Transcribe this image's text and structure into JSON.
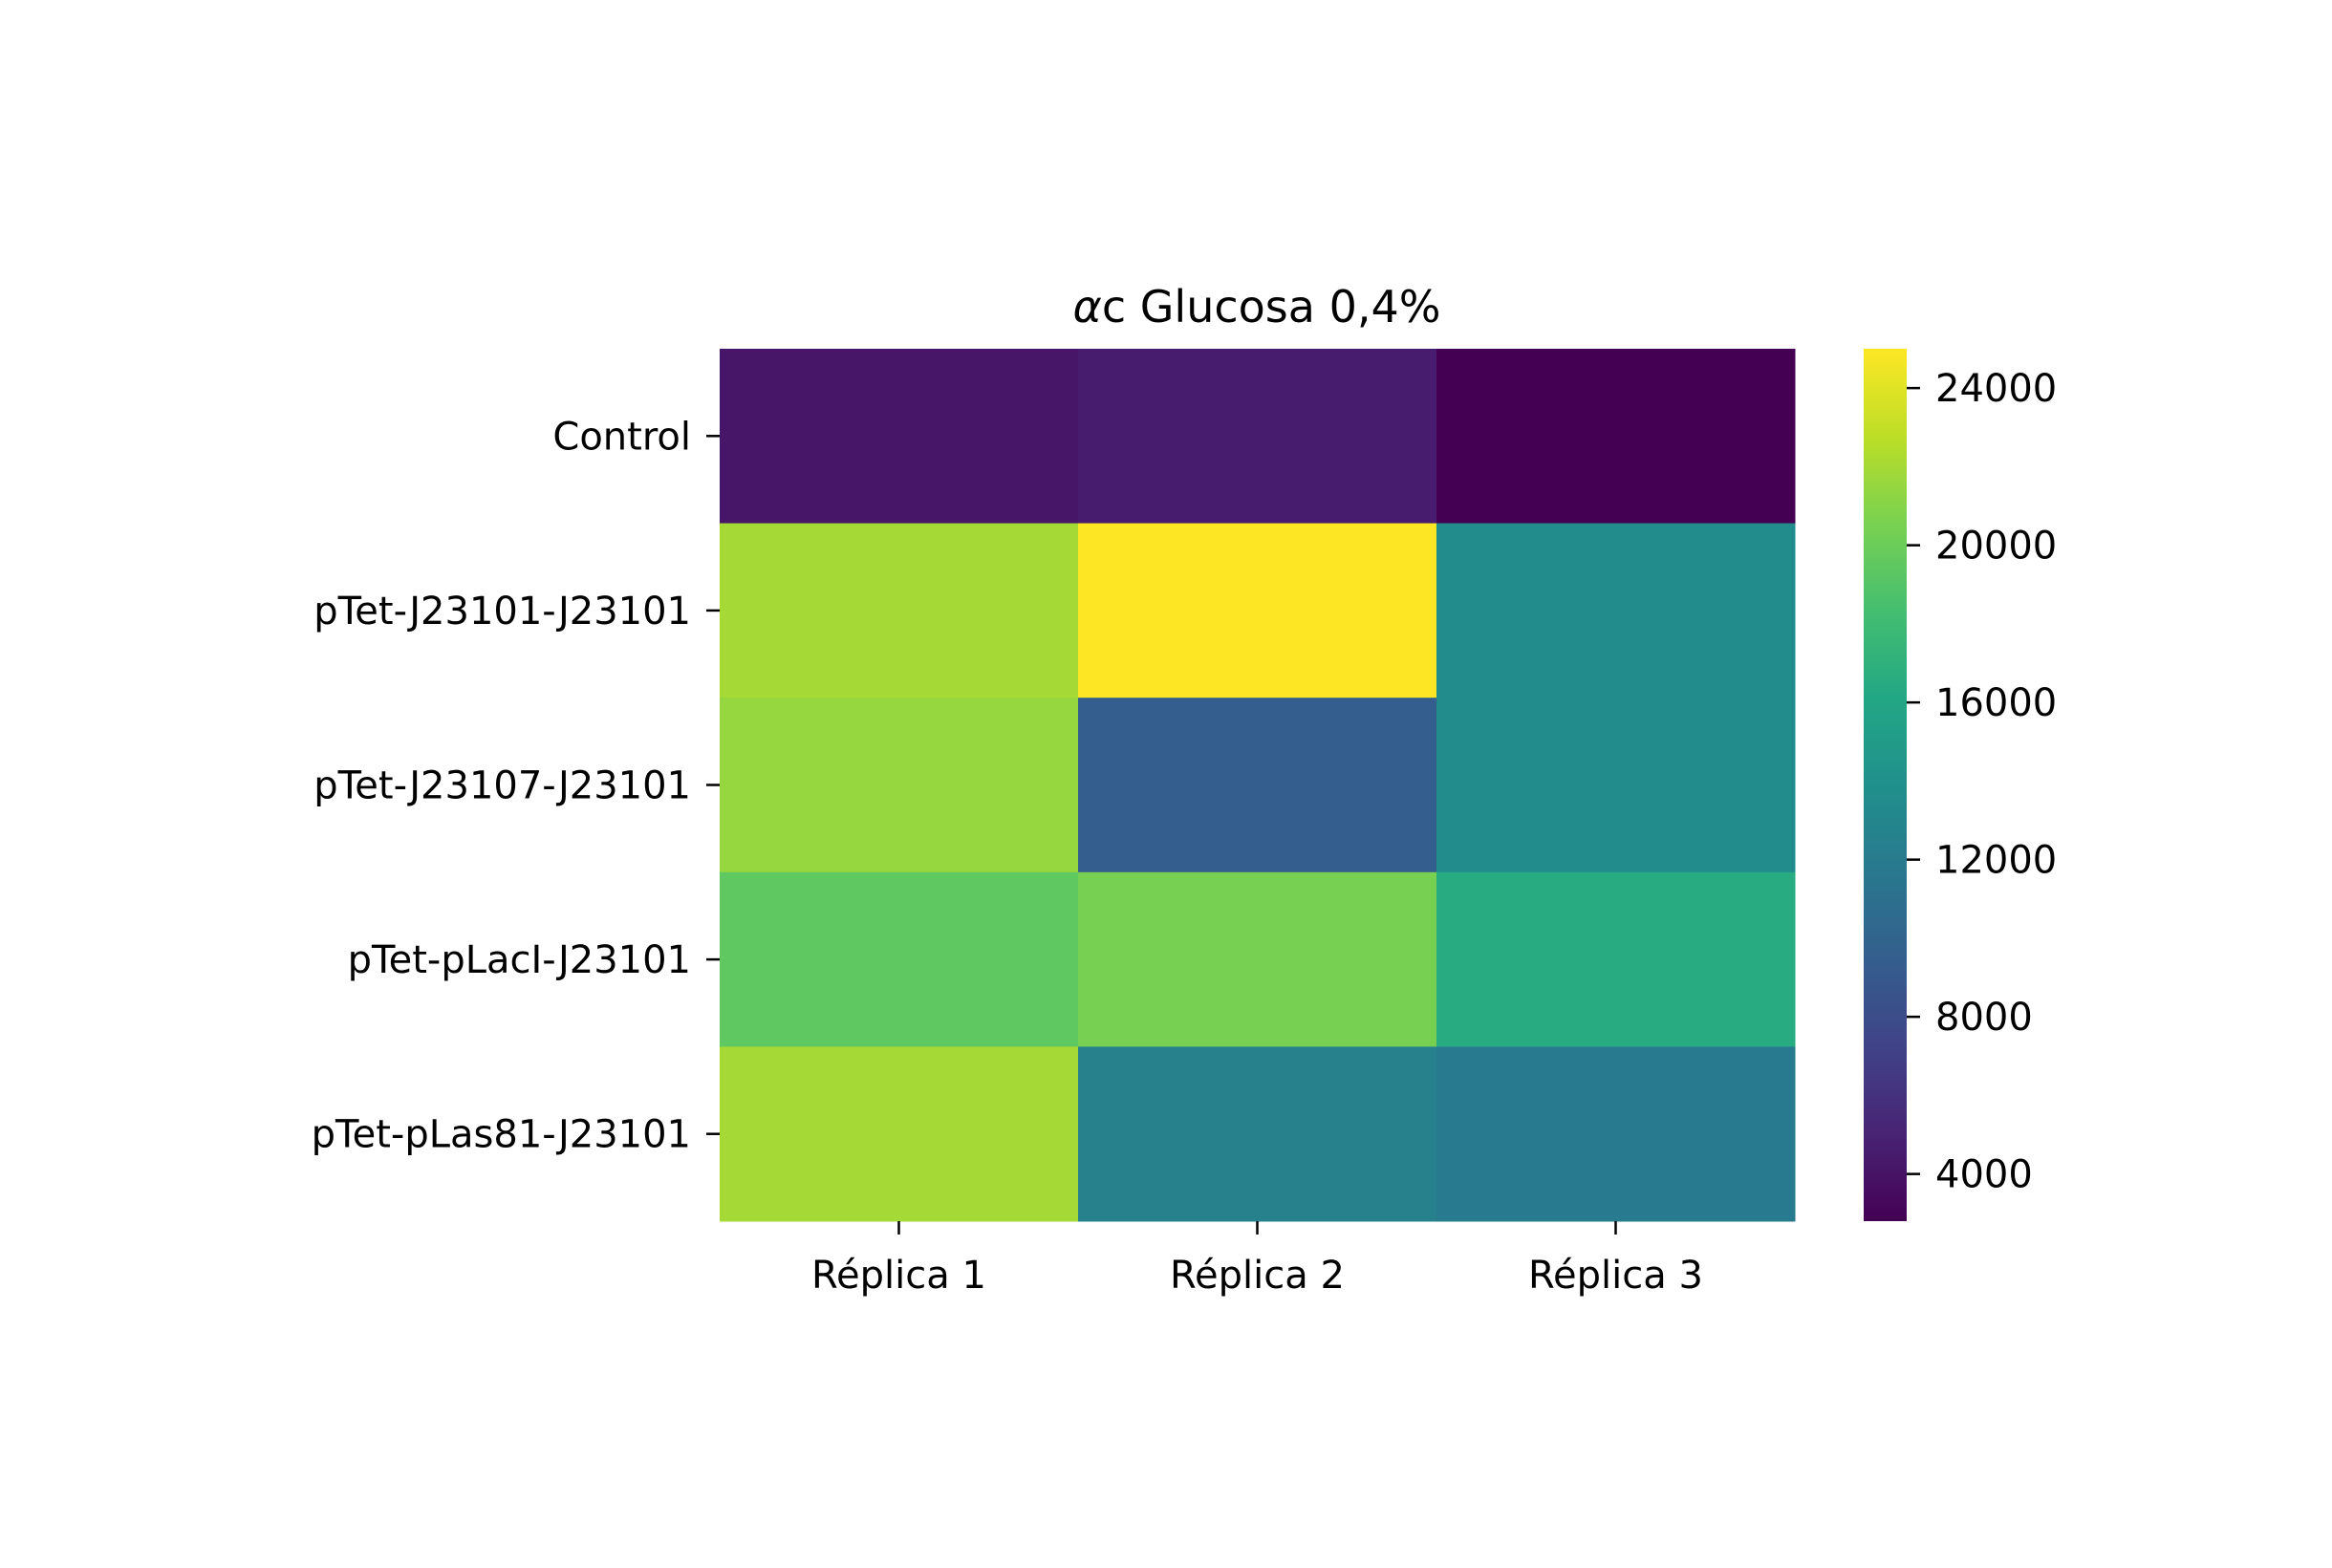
{
  "chart_data": {
    "type": "heatmap",
    "title": "αc Glucosa 0,4%",
    "title_prefix": "α",
    "title_rest": "c Glucosa 0,4%",
    "x_categories": [
      "Réplica 1",
      "Réplica 2",
      "Réplica 3"
    ],
    "y_categories": [
      "Control",
      "pTet-J23101-J23101",
      "pTet-J23107-J23101",
      "pTet-pLacI-J23101",
      "pTet-pLas81-J23101"
    ],
    "values": [
      [
        4200,
        4500,
        2800
      ],
      [
        22000,
        25000,
        13500
      ],
      [
        21500,
        9500,
        13500
      ],
      [
        19500,
        20500,
        16500
      ],
      [
        22000,
        12500,
        12000
      ]
    ],
    "colorscale": "viridis",
    "color_range": [
      2800,
      25000
    ],
    "colorbar_ticks": [
      4000,
      8000,
      12000,
      16000,
      20000,
      24000
    ],
    "colorbar_tick_labels": [
      "4000",
      "8000",
      "12000",
      "16000",
      "20000",
      "24000"
    ],
    "grid": false,
    "colorbar_position": "right"
  }
}
